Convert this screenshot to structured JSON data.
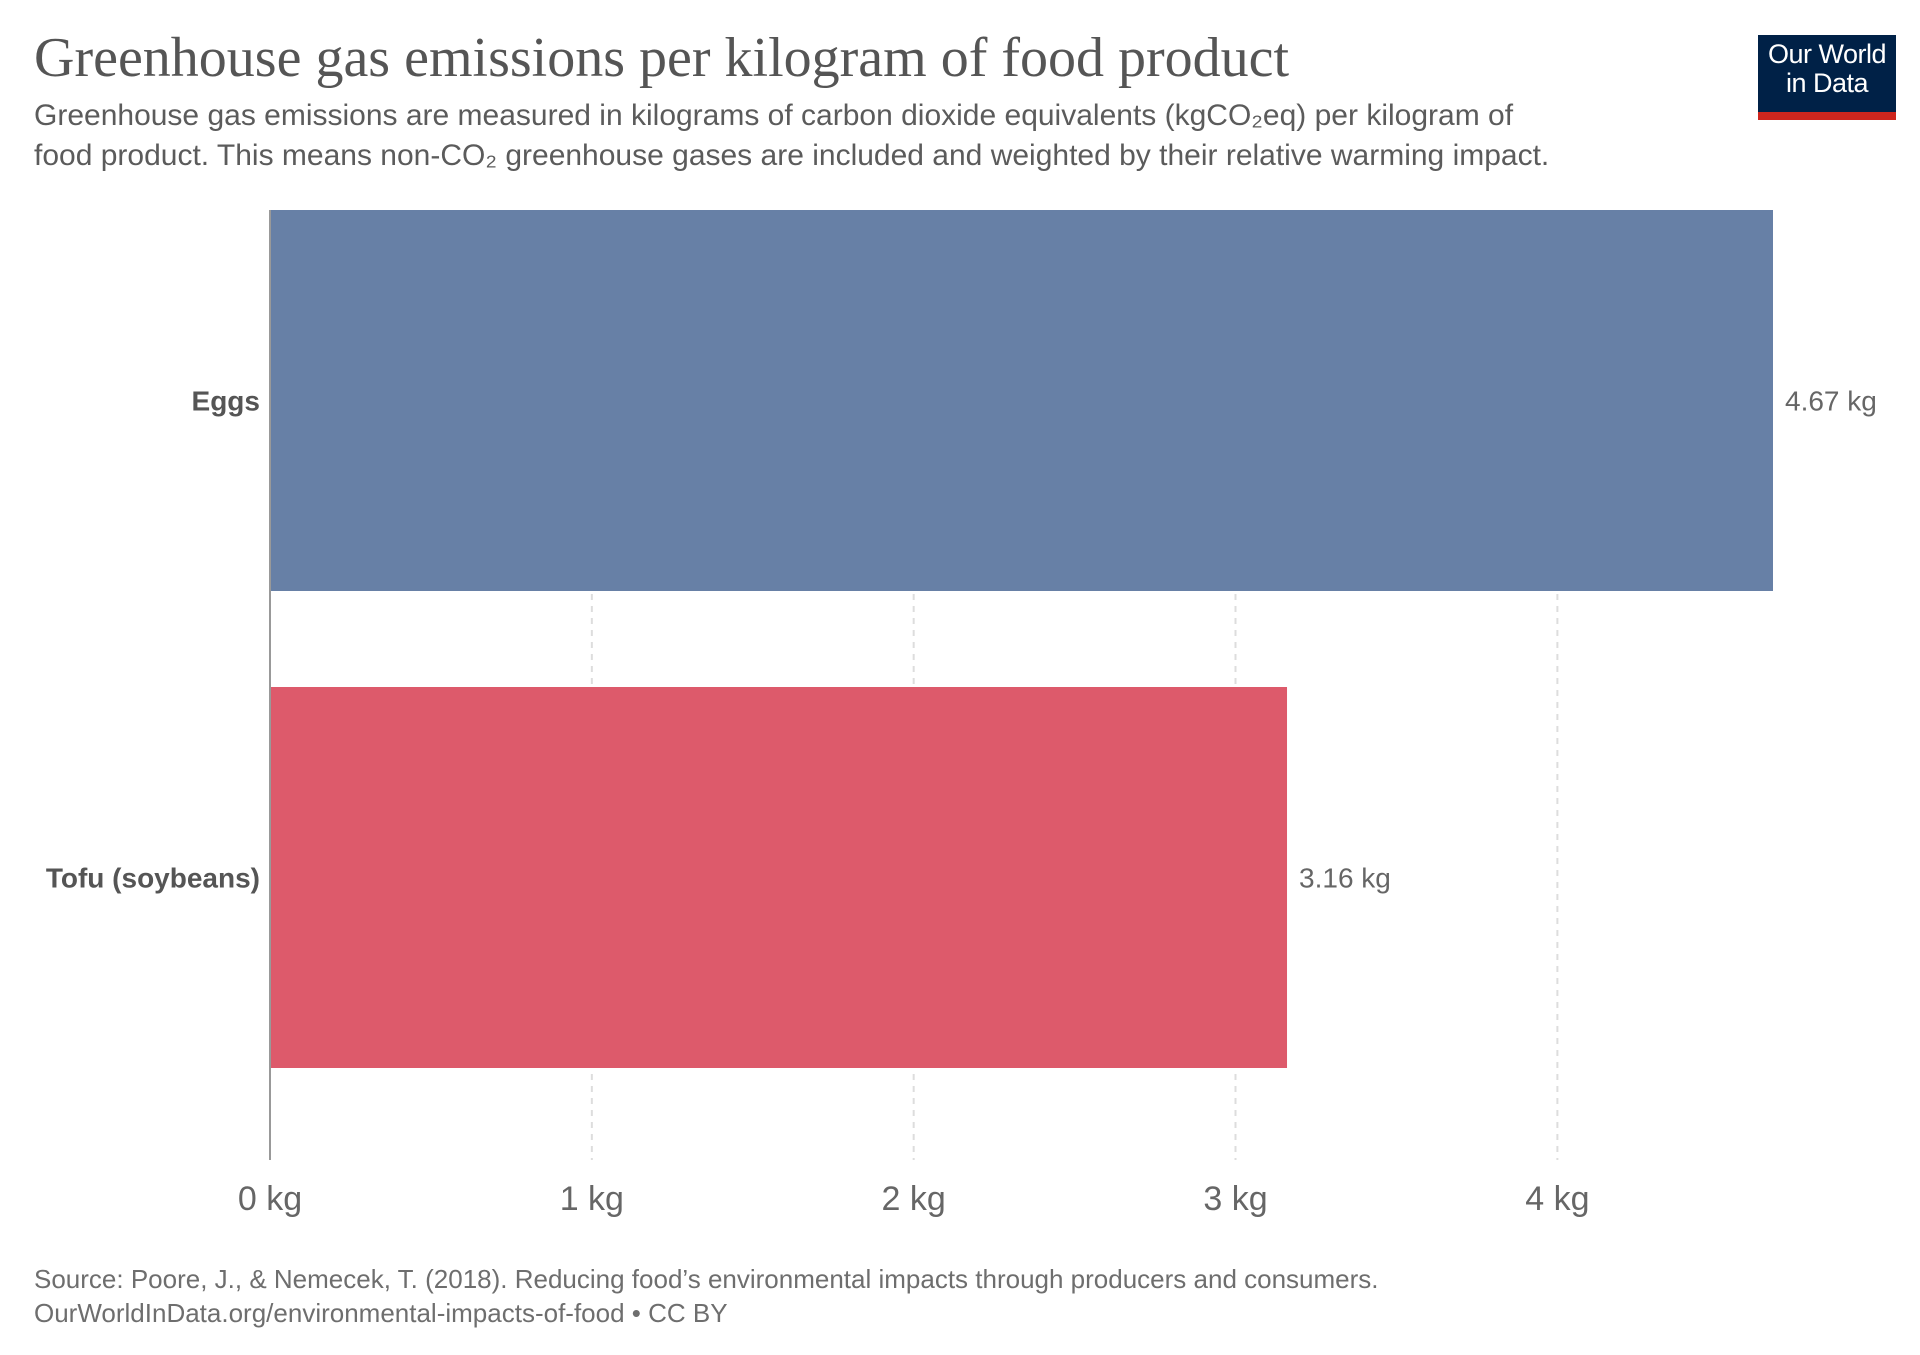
{
  "header": {
    "title": "Greenhouse gas emissions per kilogram of food product",
    "subtitle_line1": "Greenhouse gas emissions are measured in kilograms of carbon dioxide equivalents (kgCO₂eq) per kilogram of",
    "subtitle_line2": "food product. This means non-CO₂ greenhouse gases are included and weighted by their relative warming impact."
  },
  "logo": {
    "line1": "Our World",
    "line2": "in Data"
  },
  "footer": {
    "source": "Source: Poore, J., & Nemecek, T. (2018). Reducing food’s environmental impacts through producers and consumers.",
    "link_line": "OurWorldInData.org/environmental-impacts-of-food • CC BY"
  },
  "colors": {
    "eggs": "#6780a6",
    "tofu": "#dd5a6b",
    "logo_bg": "#002147",
    "logo_accent": "#ce261e"
  },
  "chart_data": {
    "type": "bar",
    "orientation": "horizontal",
    "title": "Greenhouse gas emissions per kilogram of food product",
    "xlabel": "",
    "ylabel": "",
    "unit": "kg",
    "xlim": [
      0,
      4.67
    ],
    "ticks": [
      0,
      1,
      2,
      3,
      4
    ],
    "tick_labels": [
      "0 kg",
      "1 kg",
      "2 kg",
      "3 kg",
      "4 kg"
    ],
    "grid": true,
    "categories": [
      "Eggs",
      "Tofu (soybeans)"
    ],
    "values": [
      4.67,
      3.16
    ],
    "value_labels": [
      "4.67 kg",
      "3.16 kg"
    ],
    "bar_colors": [
      "#6780a6",
      "#dd5a6b"
    ]
  }
}
